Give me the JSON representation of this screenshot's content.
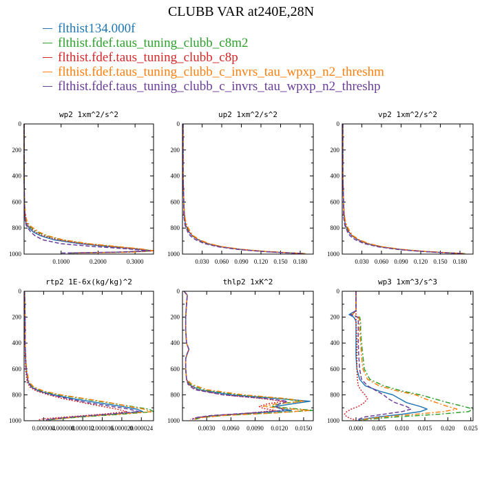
{
  "title": "CLUBB VAR at240E,28N",
  "legend": [
    {
      "label": "flthist134.000f",
      "color": "#1f77b4",
      "dash": "solid"
    },
    {
      "label": "flthist.fdef.taus_tuning_clubb_c8m2",
      "color": "#2ca02c",
      "dash": "dashdot"
    },
    {
      "label": "flthist.fdef.taus_tuning_clubb_c8p",
      "color": "#d62728",
      "dash": "dot"
    },
    {
      "label": "flthist.fdef.taus_tuning_clubb_c_invrs_tau_wpxp_n2_threshm",
      "color": "#ff7f0e",
      "dash": "dashdot"
    },
    {
      "label": "flthist.fdef.taus_tuning_clubb_c_invrs_tau_wpxp_n2_threshp",
      "color": "#6a3d9a",
      "dash": "dash"
    }
  ],
  "chart_data": [
    {
      "type": "line",
      "title": "wp2  1xm^2/s^2",
      "xlim": [
        0,
        0.35
      ],
      "ylim": [
        1000,
        0
      ],
      "xticks": [
        0.1,
        0.2,
        0.3
      ],
      "xtick_labels": [
        "0.1000",
        "0.2000",
        "0.3000"
      ],
      "yticks": [
        0,
        200,
        400,
        600,
        800,
        1000
      ],
      "ytick_labels": [
        "0",
        "200",
        "400",
        "600",
        "800",
        "1000"
      ],
      "y": [
        0,
        200,
        400,
        600,
        700,
        750,
        780,
        800,
        830,
        860,
        890,
        920,
        940,
        960,
        975,
        985,
        992
      ],
      "series": [
        {
          "x": [
            0,
            0,
            0,
            0.001,
            0.002,
            0.004,
            0.008,
            0.014,
            0.025,
            0.045,
            0.08,
            0.15,
            0.22,
            0.3,
            0.345,
            0.26,
            0.12
          ]
        },
        {
          "x": [
            0,
            0,
            0,
            0.001,
            0.003,
            0.006,
            0.012,
            0.02,
            0.035,
            0.06,
            0.1,
            0.17,
            0.24,
            0.31,
            0.35,
            0.28,
            0.13
          ]
        },
        {
          "x": [
            0,
            0,
            0,
            0.001,
            0.002,
            0.005,
            0.01,
            0.017,
            0.03,
            0.052,
            0.09,
            0.16,
            0.23,
            0.305,
            0.35,
            0.27,
            0.12
          ]
        },
        {
          "x": [
            0,
            0,
            0,
            0.001,
            0.004,
            0.008,
            0.015,
            0.025,
            0.04,
            0.065,
            0.105,
            0.175,
            0.245,
            0.315,
            0.35,
            0.29,
            0.14
          ]
        },
        {
          "x": [
            0,
            0,
            0,
            0.001,
            0.002,
            0.003,
            0.006,
            0.01,
            0.018,
            0.03,
            0.05,
            0.1,
            0.18,
            0.28,
            0.34,
            0.25,
            0.1
          ]
        }
      ]
    },
    {
      "type": "line",
      "title": "up2  1xm^2/s^2",
      "xlim": [
        0,
        0.2
      ],
      "ylim": [
        1000,
        0
      ],
      "xticks": [
        0.03,
        0.06,
        0.09,
        0.12,
        0.15,
        0.18
      ],
      "xtick_labels": [
        "0.030",
        "0.060",
        "0.090",
        "0.120",
        "0.150",
        "0.180"
      ],
      "yticks": [
        0,
        200,
        400,
        600,
        800,
        1000
      ],
      "ytick_labels": [
        "0",
        "200",
        "400",
        "600",
        "800",
        "1000"
      ],
      "y": [
        0,
        200,
        400,
        600,
        700,
        750,
        780,
        800,
        830,
        860,
        890,
        920,
        945,
        965,
        980,
        990,
        996
      ],
      "series": [
        {
          "x": [
            0.001,
            0.001,
            0.001,
            0.002,
            0.003,
            0.004,
            0.005,
            0.007,
            0.01,
            0.015,
            0.024,
            0.038,
            0.06,
            0.09,
            0.125,
            0.16,
            0.185
          ]
        },
        {
          "x": [
            0.001,
            0.001,
            0.001,
            0.002,
            0.003,
            0.004,
            0.006,
            0.008,
            0.011,
            0.016,
            0.025,
            0.04,
            0.062,
            0.092,
            0.127,
            0.162,
            0.187
          ]
        },
        {
          "x": [
            0.001,
            0.001,
            0.001,
            0.002,
            0.003,
            0.004,
            0.005,
            0.007,
            0.01,
            0.015,
            0.024,
            0.039,
            0.061,
            0.091,
            0.126,
            0.161,
            0.186
          ]
        },
        {
          "x": [
            0.001,
            0.001,
            0.001,
            0.002,
            0.003,
            0.005,
            0.007,
            0.009,
            0.012,
            0.017,
            0.026,
            0.041,
            0.063,
            0.093,
            0.128,
            0.163,
            0.188
          ]
        },
        {
          "x": [
            0.001,
            0.001,
            0.001,
            0.002,
            0.002,
            0.003,
            0.004,
            0.006,
            0.008,
            0.012,
            0.02,
            0.034,
            0.056,
            0.086,
            0.121,
            0.156,
            0.182
          ]
        }
      ]
    },
    {
      "type": "line",
      "title": "vp2  1xm^2/s^2",
      "xlim": [
        0,
        0.2
      ],
      "ylim": [
        1000,
        0
      ],
      "xticks": [
        0.03,
        0.06,
        0.09,
        0.12,
        0.15,
        0.18
      ],
      "xtick_labels": [
        "0.030",
        "0.060",
        "0.090",
        "0.120",
        "0.150",
        "0.180"
      ],
      "yticks": [
        0,
        200,
        400,
        600,
        800,
        1000
      ],
      "ytick_labels": [
        "0",
        "200",
        "400",
        "600",
        "800",
        "1000"
      ],
      "y": [
        0,
        200,
        400,
        600,
        700,
        750,
        780,
        800,
        830,
        860,
        890,
        920,
        945,
        965,
        980,
        990,
        996
      ],
      "series": [
        {
          "x": [
            0.001,
            0.001,
            0.001,
            0.002,
            0.003,
            0.004,
            0.005,
            0.007,
            0.01,
            0.015,
            0.024,
            0.038,
            0.06,
            0.09,
            0.125,
            0.16,
            0.185
          ]
        },
        {
          "x": [
            0.001,
            0.001,
            0.001,
            0.002,
            0.003,
            0.004,
            0.006,
            0.008,
            0.011,
            0.016,
            0.025,
            0.04,
            0.062,
            0.092,
            0.127,
            0.162,
            0.187
          ]
        },
        {
          "x": [
            0.001,
            0.001,
            0.001,
            0.002,
            0.003,
            0.004,
            0.005,
            0.007,
            0.01,
            0.015,
            0.024,
            0.039,
            0.061,
            0.091,
            0.126,
            0.161,
            0.186
          ]
        },
        {
          "x": [
            0.001,
            0.001,
            0.001,
            0.002,
            0.003,
            0.005,
            0.007,
            0.009,
            0.012,
            0.017,
            0.026,
            0.041,
            0.063,
            0.093,
            0.128,
            0.163,
            0.188
          ]
        },
        {
          "x": [
            0.001,
            0.001,
            0.001,
            0.002,
            0.002,
            0.003,
            0.004,
            0.006,
            0.008,
            0.012,
            0.02,
            0.034,
            0.056,
            0.086,
            0.121,
            0.156,
            0.182
          ]
        }
      ]
    },
    {
      "type": "line",
      "title": "rtp2  1E-6x(kg/kg)^2",
      "xlim": [
        0,
        2.65e-05
      ],
      "ylim": [
        1000,
        0
      ],
      "xticks": [
        4e-06,
        8e-06,
        1.2e-05,
        1.6e-05,
        2e-05,
        2.4e-05
      ],
      "xtick_labels": [
        "0.000004",
        "0.000008",
        "0.000012",
        "0.000016",
        "0.000020",
        "0.000024"
      ],
      "yticks": [
        0,
        200,
        400,
        600,
        800,
        1000
      ],
      "ytick_labels": [
        "0",
        "200",
        "400",
        "600",
        "800",
        "1000"
      ],
      "y": [
        0,
        200,
        400,
        600,
        700,
        740,
        770,
        800,
        830,
        860,
        890,
        910,
        930,
        950,
        970,
        985,
        993
      ],
      "series": [
        {
          "x": [
            1e-07,
            2e-07,
            2e-07,
            4e-07,
            8e-07,
            1.5e-06,
            3e-06,
            6e-06,
            1e-05,
            1.5e-05,
            2e-05,
            2.3e-05,
            2.43e-05,
            1.8e-05,
            1.1e-05,
            7e-06,
            5e-06
          ]
        },
        {
          "x": [
            1e-07,
            2e-07,
            2e-07,
            4e-07,
            9e-07,
            1.8e-06,
            3.5e-06,
            7e-06,
            1.2e-05,
            1.7e-05,
            2.2e-05,
            2.55e-05,
            2.65e-05,
            2e-05,
            1.2e-05,
            7e-06,
            5e-06
          ]
        },
        {
          "x": [
            1e-07,
            2e-07,
            2e-07,
            3e-07,
            6e-07,
            1.2e-06,
            2.5e-06,
            5e-06,
            8e-06,
            1.2e-05,
            1.6e-05,
            1.9e-05,
            2.1e-05,
            1.6e-05,
            9e-06,
            4e-06,
            3e-06
          ]
        },
        {
          "x": [
            1e-07,
            2e-07,
            2e-07,
            5e-07,
            1e-06,
            2e-06,
            4e-06,
            7.5e-06,
            1.25e-05,
            1.75e-05,
            2.15e-05,
            2.45e-05,
            2.6e-05,
            1.9e-05,
            1.1e-05,
            7e-06,
            5e-06
          ]
        },
        {
          "x": [
            1e-07,
            2e-07,
            2e-07,
            4e-07,
            8e-07,
            1.5e-06,
            3e-06,
            5.5e-06,
            9e-06,
            1.3e-05,
            1.8e-05,
            2.15e-05,
            2.35e-05,
            1.7e-05,
            1e-05,
            6e-06,
            4.5e-06
          ]
        }
      ]
    },
    {
      "type": "line",
      "title": "thlp2  1xK^2",
      "xlim": [
        0,
        0.0162
      ],
      "ylim": [
        1000,
        0
      ],
      "xticks": [
        0.003,
        0.006,
        0.009,
        0.012,
        0.015
      ],
      "xtick_labels": [
        "0.0030",
        "0.0060",
        "0.0090",
        "0.0120",
        "0.0150"
      ],
      "yticks": [
        0,
        200,
        400,
        600,
        800,
        1000
      ],
      "ytick_labels": [
        "0",
        "200",
        "400",
        "600",
        "800",
        "1000"
      ],
      "y": [
        0,
        30,
        100,
        200,
        300,
        400,
        450,
        480,
        520,
        600,
        680,
        720,
        760,
        800,
        830,
        850,
        870,
        890,
        905,
        920,
        940,
        960,
        975,
        990
      ],
      "series": [
        {
          "x": [
            0.0002,
            0.0006,
            0.0005,
            0.0004,
            0.0004,
            0.0005,
            0.0008,
            0.0006,
            0.0004,
            0.0004,
            0.0005,
            0.0008,
            0.002,
            0.006,
            0.012,
            0.0158,
            0.0135,
            0.0115,
            0.012,
            0.0135,
            0.009,
            0.004,
            0.002,
            0.0015
          ]
        },
        {
          "x": [
            0.0002,
            0.0006,
            0.0005,
            0.0004,
            0.0004,
            0.0005,
            0.0008,
            0.0006,
            0.0004,
            0.0004,
            0.0005,
            0.001,
            0.0025,
            0.007,
            0.0125,
            0.0145,
            0.012,
            0.011,
            0.0135,
            0.0162,
            0.011,
            0.005,
            0.0025,
            0.0015
          ]
        },
        {
          "x": [
            0.0002,
            0.0006,
            0.0005,
            0.0004,
            0.0004,
            0.0005,
            0.0008,
            0.0006,
            0.0004,
            0.0004,
            0.0005,
            0.0008,
            0.0018,
            0.005,
            0.01,
            0.0125,
            0.0105,
            0.0095,
            0.01,
            0.0115,
            0.0085,
            0.004,
            0.0018,
            0.001
          ]
        },
        {
          "x": [
            0.0002,
            0.0006,
            0.0005,
            0.0004,
            0.0004,
            0.0005,
            0.0008,
            0.0006,
            0.0004,
            0.0004,
            0.0005,
            0.0012,
            0.003,
            0.0075,
            0.013,
            0.015,
            0.0115,
            0.01,
            0.0125,
            0.0158,
            0.0115,
            0.005,
            0.0025,
            0.0015
          ]
        },
        {
          "x": [
            0.0002,
            0.0006,
            0.0005,
            0.0004,
            0.0004,
            0.0005,
            0.0008,
            0.0006,
            0.0004,
            0.0004,
            0.0005,
            0.0007,
            0.0015,
            0.005,
            0.0105,
            0.013,
            0.012,
            0.0115,
            0.0122,
            0.0125,
            0.0085,
            0.0035,
            0.0018,
            0.0012
          ]
        }
      ]
    },
    {
      "type": "line",
      "title": "wp3  1xm^3/s^3",
      "xlim": [
        -0.003,
        0.0255
      ],
      "ylim": [
        1000,
        0
      ],
      "xticks": [
        0,
        0.005,
        0.01,
        0.015,
        0.02,
        0.025
      ],
      "xtick_labels": [
        "0.000",
        "0.005",
        "0.010",
        "0.015",
        "0.020",
        "0.025"
      ],
      "yticks": [
        0,
        200,
        400,
        600,
        800,
        1000
      ],
      "ytick_labels": [
        "0",
        "200",
        "400",
        "600",
        "800",
        "1000"
      ],
      "y": [
        0,
        150,
        180,
        200,
        230,
        300,
        400,
        500,
        600,
        680,
        730,
        770,
        800,
        830,
        860,
        890,
        910,
        930,
        950,
        970,
        985,
        995
      ],
      "series": [
        {
          "x": [
            0,
            0,
            -0.0015,
            -0.0005,
            0,
            0,
            0,
            0,
            0.0002,
            0.0008,
            0.002,
            0.005,
            0.008,
            0.0095,
            0.011,
            0.014,
            0.0155,
            0.014,
            0.01,
            0.005,
            0.002,
            0.0005
          ]
        },
        {
          "x": [
            0,
            0,
            -0.0008,
            0.0008,
            0.001,
            0.001,
            0.0012,
            0.0015,
            0.0018,
            0.003,
            0.006,
            0.01,
            0.014,
            0.017,
            0.02,
            0.0235,
            0.0255,
            0.0245,
            0.018,
            0.009,
            0.004,
            0.001
          ]
        },
        {
          "x": [
            0,
            0,
            0,
            0,
            0,
            0.0001,
            0.0002,
            0.0002,
            0.0002,
            0.0003,
            0.0005,
            0.0012,
            0.002,
            0.0025,
            0.0018,
            0.0005,
            -0.001,
            -0.002,
            -0.0025,
            -0.002,
            -0.001,
            0
          ]
        },
        {
          "x": [
            0,
            0,
            -0.0008,
            0.0006,
            0.0008,
            0.0008,
            0.001,
            0.0012,
            0.0015,
            0.0025,
            0.005,
            0.009,
            0.013,
            0.015,
            0.0175,
            0.02,
            0.022,
            0.019,
            0.013,
            0.006,
            0.0025,
            0.0008
          ]
        },
        {
          "x": [
            0,
            0,
            -0.0012,
            0.0004,
            0.0005,
            0.0005,
            0.0005,
            0.0006,
            0.0008,
            0.0012,
            0.0025,
            0.0045,
            0.006,
            0.007,
            0.0085,
            0.011,
            0.012,
            0.01,
            0.006,
            0.002,
            0.0008,
            0.0002
          ]
        }
      ]
    }
  ]
}
